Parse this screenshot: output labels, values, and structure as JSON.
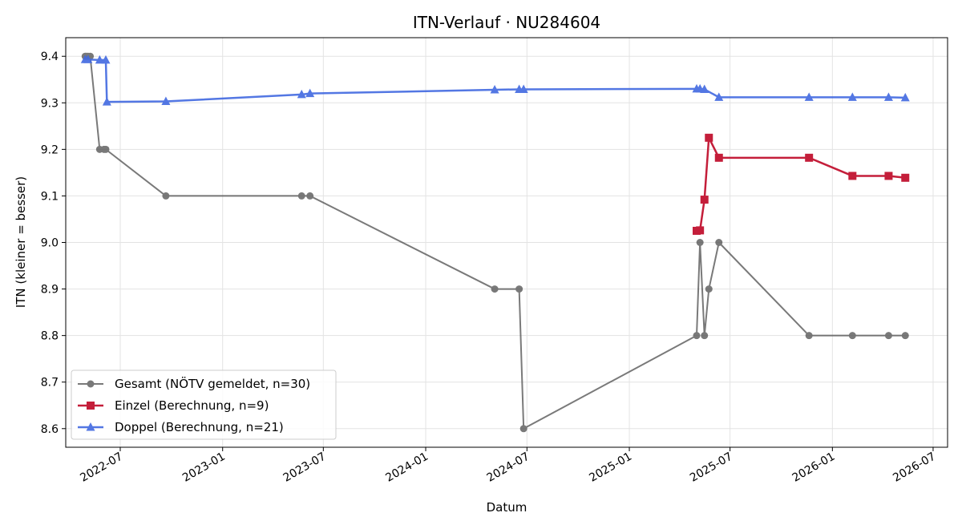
{
  "chart_data": {
    "type": "line",
    "title": "ITN-Verlauf · NU284604",
    "xlabel": "Datum",
    "ylabel": "ITN  (kleiner = besser)",
    "x_type": "date",
    "xlim": [
      "2022-03-25",
      "2026-07-27"
    ],
    "ylim": [
      8.56,
      9.44
    ],
    "x_ticks": [
      "2022-07-01",
      "2023-01-01",
      "2023-07-01",
      "2024-01-01",
      "2024-07-01",
      "2025-01-01",
      "2025-07-01",
      "2026-01-01",
      "2026-07-01"
    ],
    "x_tick_labels": [
      "2022-07",
      "2023-01",
      "2023-07",
      "2024-01",
      "2024-07",
      "2025-01",
      "2025-07",
      "2026-01",
      "2026-07"
    ],
    "y_ticks": [
      8.6,
      8.7,
      8.8,
      8.9,
      9.0,
      9.1,
      9.2,
      9.3,
      9.4
    ],
    "y_tick_labels": [
      "8.6",
      "8.7",
      "8.8",
      "8.9",
      "9.0",
      "9.1",
      "9.2",
      "9.3",
      "9.4"
    ],
    "grid": true,
    "legend_position": "lower-left",
    "series": [
      {
        "name": "Gesamt (NÖTV gemeldet, n=30)",
        "color": "#4d4d4d",
        "marker": "circle",
        "points": [
          [
            "2022-04-29",
            9.4
          ],
          [
            "2022-05-01",
            9.4
          ],
          [
            "2022-05-04",
            9.4
          ],
          [
            "2022-05-08",
            9.4
          ],
          [
            "2022-05-25",
            9.2
          ],
          [
            "2022-06-02",
            9.2
          ],
          [
            "2022-06-05",
            9.2
          ],
          [
            "2022-09-21",
            9.1
          ],
          [
            "2023-05-23",
            9.1
          ],
          [
            "2023-06-07",
            9.1
          ],
          [
            "2024-05-04",
            8.9
          ],
          [
            "2024-06-17",
            8.9
          ],
          [
            "2024-06-25",
            8.6
          ],
          [
            "2025-05-02",
            8.8
          ],
          [
            "2025-05-08",
            9.0
          ],
          [
            "2025-05-16",
            8.8
          ],
          [
            "2025-05-24",
            8.9
          ],
          [
            "2025-06-11",
            9.0
          ],
          [
            "2025-11-20",
            8.8
          ],
          [
            "2026-02-06",
            8.8
          ],
          [
            "2026-04-12",
            8.8
          ],
          [
            "2026-05-12",
            8.8
          ]
        ]
      },
      {
        "name": "Einzel (Berechnung, n=9)",
        "color": "#c41e3a",
        "marker": "square",
        "points": [
          [
            "2025-05-02",
            9.025
          ],
          [
            "2025-05-08",
            9.026
          ],
          [
            "2025-05-16",
            9.092
          ],
          [
            "2025-05-24",
            9.225
          ],
          [
            "2025-06-11",
            9.182
          ],
          [
            "2025-11-20",
            9.182
          ],
          [
            "2026-02-06",
            9.143
          ],
          [
            "2026-04-12",
            9.143
          ],
          [
            "2026-05-12",
            9.139
          ]
        ]
      },
      {
        "name": "Doppel (Berechnung, n=21)",
        "color": "#4169e1",
        "marker": "triangle",
        "points": [
          [
            "2022-04-29",
            9.393
          ],
          [
            "2022-05-04",
            9.393
          ],
          [
            "2022-05-25",
            9.392
          ],
          [
            "2022-06-05",
            9.392
          ],
          [
            "2022-06-07",
            9.302
          ],
          [
            "2022-09-21",
            9.303
          ],
          [
            "2023-05-23",
            9.318
          ],
          [
            "2023-06-07",
            9.32
          ],
          [
            "2024-05-04",
            9.328
          ],
          [
            "2024-06-17",
            9.329
          ],
          [
            "2024-06-25",
            9.329
          ],
          [
            "2025-05-02",
            9.33
          ],
          [
            "2025-05-08",
            9.33
          ],
          [
            "2025-05-16",
            9.329
          ],
          [
            "2025-06-11",
            9.312
          ],
          [
            "2025-11-20",
            9.312
          ],
          [
            "2026-02-06",
            9.312
          ],
          [
            "2026-04-12",
            9.312
          ],
          [
            "2026-05-12",
            9.311
          ]
        ]
      }
    ]
  }
}
